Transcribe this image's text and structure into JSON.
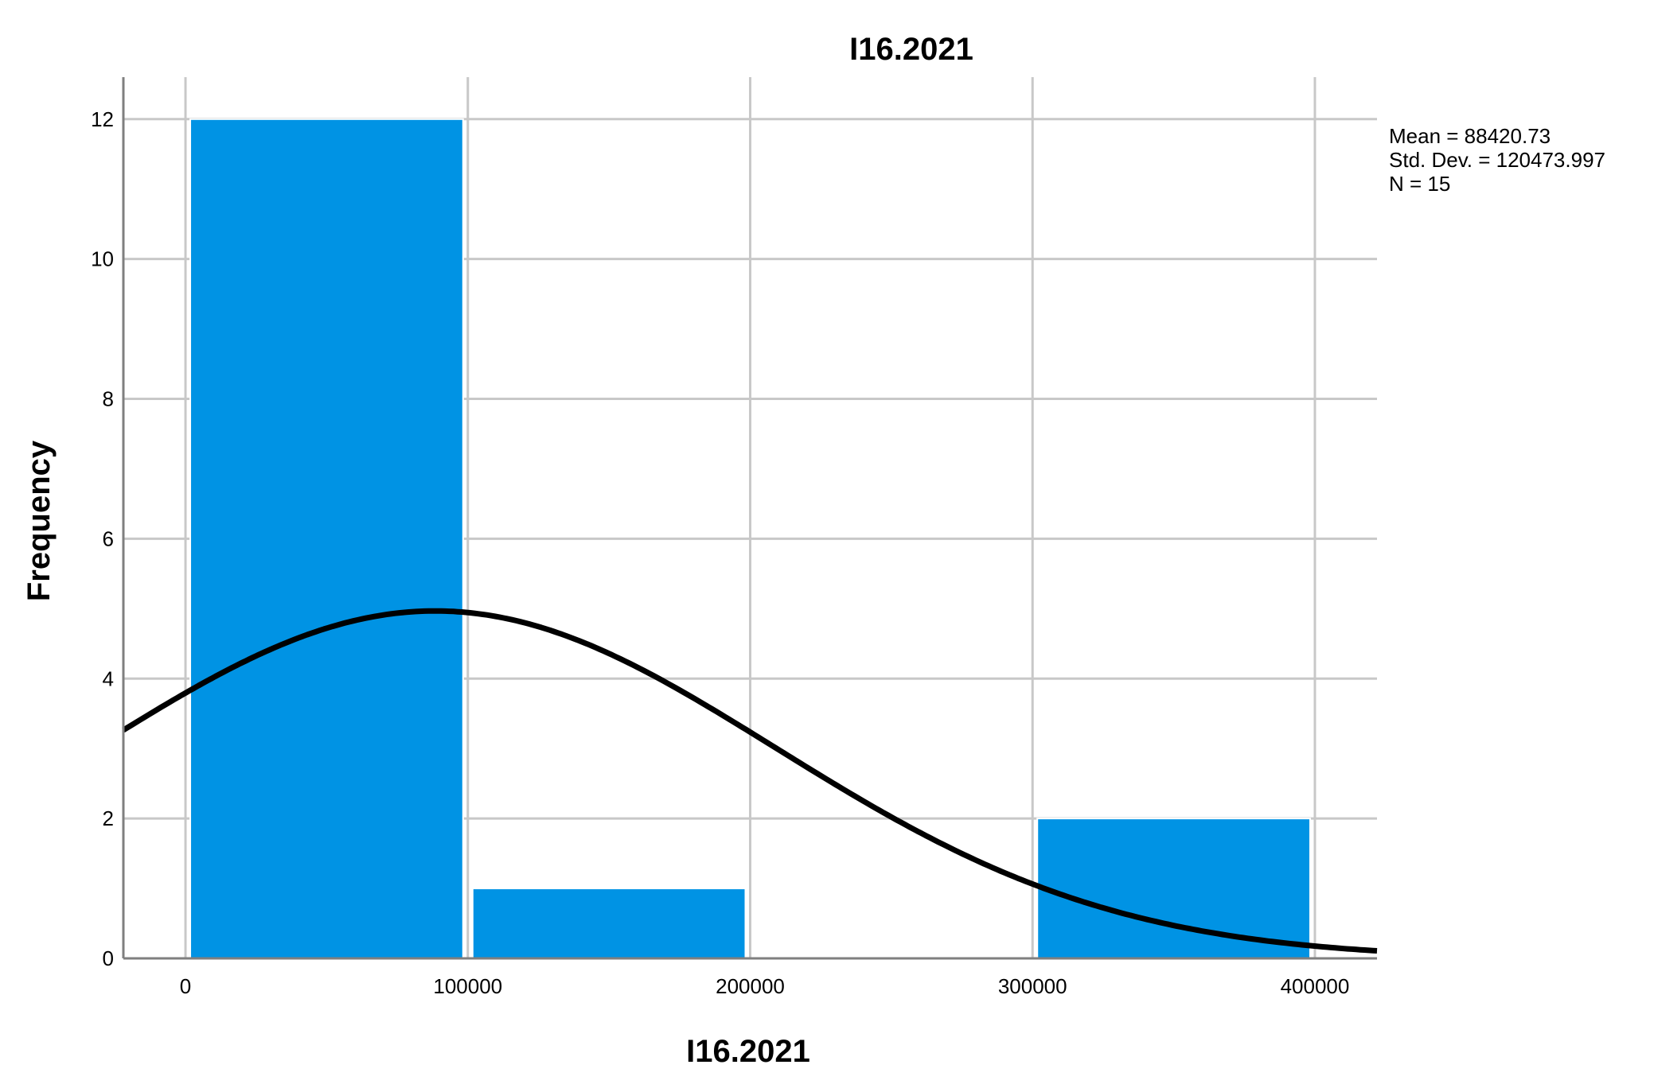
{
  "chart_data": {
    "type": "bar",
    "title": "I16.2021",
    "xlabel": "I16.2021",
    "ylabel": "Frequency",
    "bins": [
      {
        "start": 0,
        "end": 100000,
        "count": 12
      },
      {
        "start": 100000,
        "end": 200000,
        "count": 1
      },
      {
        "start": 200000,
        "end": 300000,
        "count": 0
      },
      {
        "start": 300000,
        "end": 400000,
        "count": 2
      }
    ],
    "xlim": [
      -22000,
      422000
    ],
    "ylim": [
      0,
      12.6
    ],
    "x_ticks": [
      0,
      100000,
      200000,
      300000,
      400000
    ],
    "y_ticks": [
      0,
      2,
      4,
      6,
      8,
      10,
      12
    ],
    "grid": true,
    "bar_color": "#0093E4",
    "curve_color": "#000000",
    "normal_curve": {
      "mean": 88420.73,
      "std": 120473.997,
      "n": 15,
      "bin_width": 100000
    },
    "stats_text": [
      "Mean = 88420.73",
      "Std. Dev. = 120473.997",
      "N = 15"
    ],
    "stats_position": "top-right"
  }
}
